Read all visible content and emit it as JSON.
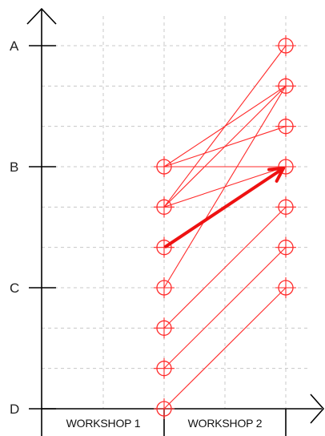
{
  "chart_data": {
    "type": "scatter",
    "title": "",
    "xlabel": "",
    "ylabel": "",
    "categories": [
      "WORKSHOP 1",
      "WORKSHOP 2"
    ],
    "y_ticks": [
      "A",
      "B",
      "C",
      "D"
    ],
    "ylim": [
      0,
      9
    ],
    "grid": true,
    "colors": {
      "series": "#ff2a2a",
      "highlight": "#ee1111",
      "axis": "#000000",
      "grid": "#c8c8c8"
    },
    "workshop1_points": [
      6.0,
      5.0,
      4.0,
      3.0,
      2.0,
      1.0,
      0.0
    ],
    "workshop2_points": [
      9.0,
      8.0,
      7.0,
      6.0,
      5.0,
      4.0,
      3.0
    ],
    "transitions": [
      {
        "from": 6.0,
        "to": 7.0
      },
      {
        "from": 6.0,
        "to": 6.0
      },
      {
        "from": 6.0,
        "to": 8.0
      },
      {
        "from": 5.0,
        "to": 9.0
      },
      {
        "from": 5.0,
        "to": 8.0
      },
      {
        "from": 5.0,
        "to": 6.0
      },
      {
        "from": 4.0,
        "to": 6.0
      },
      {
        "from": 3.0,
        "to": 8.0
      },
      {
        "from": 2.0,
        "to": 5.0
      },
      {
        "from": 1.0,
        "to": 4.0
      },
      {
        "from": 0.0,
        "to": 3.0
      }
    ],
    "highlight_arrow": {
      "from": 4.0,
      "to": 6.0
    }
  }
}
